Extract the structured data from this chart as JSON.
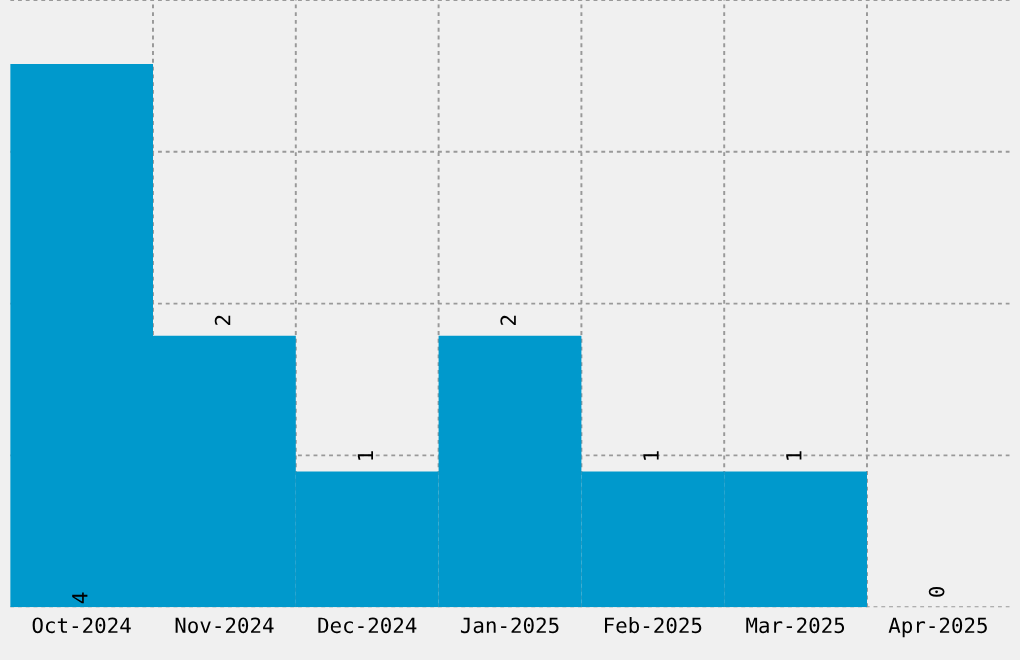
{
  "chart_data": {
    "type": "bar",
    "categories": [
      "Oct-2024",
      "Nov-2024",
      "Dec-2024",
      "Jan-2025",
      "Feb-2025",
      "Mar-2025",
      "Apr-2025"
    ],
    "values": [
      4,
      2,
      1,
      2,
      1,
      1,
      0
    ],
    "color": "#0099cc",
    "data_labels": true,
    "grid": true,
    "tick_labels": "x"
  }
}
